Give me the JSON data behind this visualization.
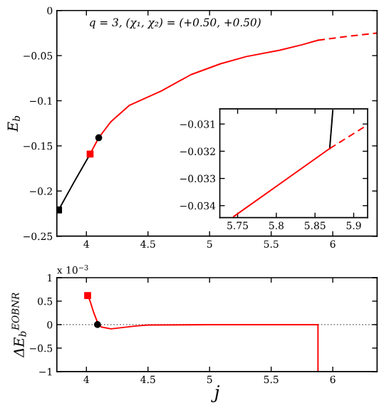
{
  "chart_data": [
    {
      "type": "line",
      "ylabel": "E$_{b}$",
      "annotations": [
        "q = 3, (χ₁, χ₂) = (+0.50, +0.50)"
      ],
      "xlim": [
        3.76,
        6.36
      ],
      "ylim": [
        -0.25,
        0
      ],
      "xticks": [
        4,
        4.5,
        5,
        5.5,
        6
      ],
      "yticks": [
        -0.25,
        -0.2,
        -0.15,
        -0.1,
        -0.05,
        0
      ],
      "grid": false,
      "legend": false,
      "series": [
        {
          "color": "#000000",
          "x": [
            3.774,
            3.9,
            4.03
          ],
          "values": [
            -0.221,
            -0.19,
            -0.159
          ],
          "line_style": "solid",
          "marker": "none"
        },
        {
          "color": "#ff0000",
          "x": [
            4.03,
            4.1,
            4.2,
            4.35,
            4.61,
            4.85,
            5.09,
            5.3,
            5.57,
            5.75,
            5.88
          ],
          "values": [
            -0.159,
            -0.141,
            -0.123,
            -0.105,
            -0.089,
            -0.071,
            -0.059,
            -0.051,
            -0.044,
            -0.038,
            -0.033
          ],
          "line_style": "solid",
          "marker": "none"
        },
        {
          "color": "#ff0000",
          "x": [
            5.88,
            6.1,
            6.36
          ],
          "values": [
            -0.033,
            -0.029,
            -0.025
          ],
          "line_style": "dashed",
          "marker": "none"
        },
        {
          "type": "scatter",
          "color": "#000000",
          "x": [
            3.774
          ],
          "values": [
            -0.221
          ],
          "marker": "square"
        },
        {
          "type": "scatter",
          "color": "#ff0000",
          "x": [
            4.03
          ],
          "values": [
            -0.159
          ],
          "marker": "square"
        },
        {
          "type": "scatter",
          "color": "#000000",
          "x": [
            4.1
          ],
          "values": [
            -0.141
          ],
          "marker": "circle"
        }
      ]
    },
    {
      "type": "line",
      "xlim": [
        5.727,
        5.918
      ],
      "ylim": [
        -0.03444,
        -0.03044
      ],
      "xticks": [
        5.75,
        5.8,
        5.85,
        5.9
      ],
      "yticks": [
        -0.034,
        -0.033,
        -0.032,
        -0.031
      ],
      "grid": false,
      "legend": false,
      "series": [
        {
          "color": "#000000",
          "x": [
            5.869,
            5.873
          ],
          "values": [
            -0.0319,
            -0.0305
          ],
          "line_style": "solid",
          "marker": "none"
        },
        {
          "color": "#ff0000",
          "x": [
            5.745,
            5.869
          ],
          "values": [
            -0.0344,
            -0.0319
          ],
          "line_style": "solid",
          "marker": "none"
        },
        {
          "color": "#ff0000",
          "x": [
            5.869,
            5.918
          ],
          "values": [
            -0.0319,
            -0.03103
          ],
          "line_style": "dashed",
          "marker": "none"
        }
      ]
    },
    {
      "type": "line",
      "xlabel": "j",
      "ylabel": "ΔE$_{b}$$^{EOBNR}$",
      "annotations": [
        "x 10$^{−3}$"
      ],
      "xlim": [
        3.76,
        6.36
      ],
      "ylim": [
        -1,
        1
      ],
      "xticks": [
        4,
        4.5,
        5,
        5.5,
        6
      ],
      "yticks": [
        -1,
        -0.5,
        0,
        0.5,
        1
      ],
      "grid": false,
      "legend": false,
      "ref_lines": [
        {
          "axis": "y",
          "value": 0,
          "color": "#888888",
          "line_style": "dotted"
        }
      ],
      "series": [
        {
          "color": "#ff0000",
          "x": [
            4.01,
            4.03,
            4.06,
            4.09,
            4.12,
            4.2,
            4.3,
            4.4,
            4.5,
            5.0,
            5.88,
            5.88
          ],
          "values": [
            0.62,
            0.5,
            0.25,
            0.05,
            -0.05,
            -0.09,
            -0.06,
            -0.03,
            -0.01,
            0,
            0,
            -1
          ],
          "line_style": "solid",
          "marker": "none"
        },
        {
          "type": "scatter",
          "color": "#ff0000",
          "x": [
            4.01
          ],
          "values": [
            0.62
          ],
          "marker": "square"
        },
        {
          "type": "scatter",
          "color": "#000000",
          "x": [
            4.09
          ],
          "values": [
            0
          ],
          "marker": "circle"
        }
      ]
    }
  ]
}
